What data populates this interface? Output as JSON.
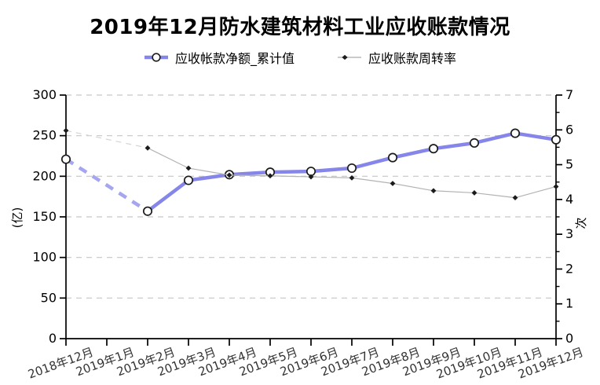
{
  "title": "2019年12月防水建筑材料工业应收账款情况",
  "legend": {
    "items": [
      {
        "label": "应收帐款净额_累计值",
        "marker": "circle-line",
        "color": "#8585ea"
      },
      {
        "label": "应收账款周转率",
        "marker": "diamond-line",
        "color": "#b3b3b3"
      }
    ]
  },
  "chart_data": {
    "type": "line",
    "categories": [
      "2018年12月",
      "2019年1月",
      "2019年2月",
      "2019年3月",
      "2019年4月",
      "2019年5月",
      "2019年6月",
      "2019年7月",
      "2019年8月",
      "2019年9月",
      "2019年10月",
      "2019年11月",
      "2019年12月"
    ],
    "series": [
      {
        "name": "应收帐款净额_累计值",
        "axis": "left",
        "unit": "亿",
        "color": "#8585ea",
        "gap_color": "#a6a6f0",
        "marker": "circle",
        "line_width": 4.5,
        "values": [
          221,
          null,
          157,
          195,
          202,
          205,
          206,
          210,
          223,
          234,
          241,
          253,
          245
        ]
      },
      {
        "name": "应收账款周转率",
        "axis": "right",
        "unit": "次",
        "color": "#b3b3b3",
        "gap_color": "#d4d4d4",
        "marker": "diamond",
        "line_width": 1.2,
        "values": [
          5.98,
          null,
          5.48,
          4.9,
          4.7,
          4.68,
          4.65,
          4.62,
          4.46,
          4.25,
          4.19,
          4.05,
          4.37
        ]
      }
    ],
    "left_axis": {
      "label": "(亿)",
      "min": 0,
      "max": 300,
      "step": 50,
      "tick_labels": [
        "0",
        "50",
        "100",
        "150",
        "200",
        "250",
        "300"
      ]
    },
    "right_axis": {
      "label": "次",
      "min": 0,
      "max": 7,
      "step": 1,
      "minor_step": 0.5,
      "tick_labels": [
        "0",
        "1",
        "2",
        "3",
        "4",
        "5",
        "6",
        "7"
      ]
    },
    "grid": {
      "horizontal": true,
      "style": "dashed",
      "color": "#c6c6c6"
    },
    "note_missing_point": "2019年1月 无数据，以虚线连接",
    "marker_stroke": "#1b1b1b",
    "axis_color": "#000000",
    "x_label_color": "#333333",
    "legend_position": "top"
  }
}
